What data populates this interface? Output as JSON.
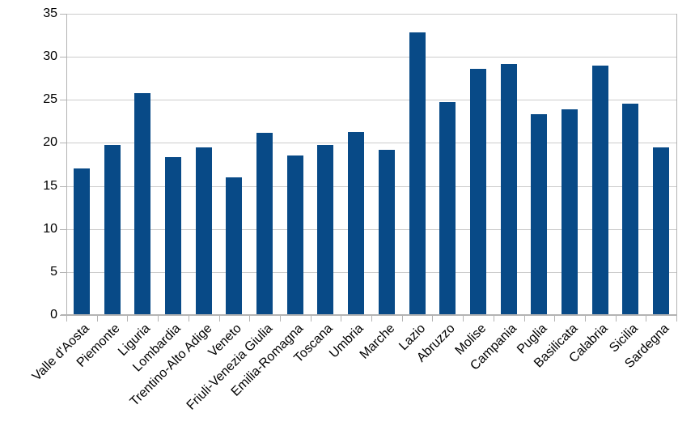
{
  "chart_data": {
    "type": "bar",
    "categories": [
      "Valle d'Aosta",
      "Piemonte",
      "Liguria",
      "Lombardia",
      "Trentino-Alto Adige",
      "Veneto",
      "Friuli-Venezia Giulia",
      "Emilia-Romagna",
      "Toscana",
      "Umbria",
      "Marche",
      "Lazio",
      "Abruzzo",
      "Molise",
      "Campania",
      "Puglia",
      "Basilicata",
      "Calabria",
      "Sicilia",
      "Sardegna"
    ],
    "values": [
      17.0,
      19.8,
      25.8,
      18.3,
      19.5,
      16.0,
      21.2,
      18.5,
      19.8,
      21.3,
      19.2,
      32.8,
      24.7,
      28.6,
      29.2,
      23.3,
      23.9,
      29.0,
      24.6,
      19.5
    ],
    "title": "",
    "xlabel": "",
    "ylabel": "",
    "ylim": [
      0,
      35
    ],
    "yticks": [
      0,
      5,
      10,
      15,
      20,
      25,
      30,
      35
    ],
    "grid": true,
    "legend": "none",
    "x_label_rotation_deg": 45,
    "colors": {
      "bar_fill": "#084a87",
      "gridline": "#cccccc",
      "axis": "#b3b3b3",
      "text": "#000000",
      "background": "#ffffff"
    }
  }
}
